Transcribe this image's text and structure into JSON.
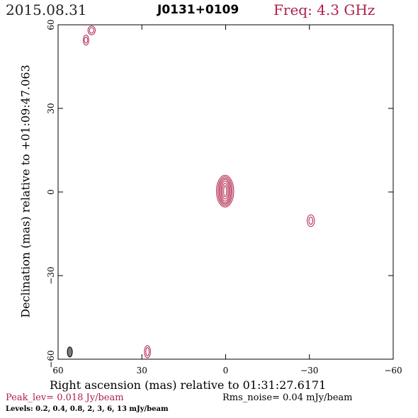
{
  "header": {
    "date": "2015.08.31",
    "source": "J0131+0109",
    "freq": "Freq: 4.3 GHz"
  },
  "footer": {
    "peak": "Peak_lev=  0.018 Jy/beam",
    "rms": "Rms_noise= 0.04 mJy/beam",
    "levels": "Levels: 0.2, 0.4, 0.8,   2,   3,   6,  13 mJy/beam"
  },
  "chart_data": {
    "type": "contour",
    "xlabel": "Right ascension (mas) relative to 01:31:27.6171",
    "ylabel": "Declination (mas) relative to +01:09:47.063",
    "xlim": [
      60,
      -60
    ],
    "ylim": [
      -60,
      60
    ],
    "xticks": [
      60,
      30,
      0,
      -30,
      -60
    ],
    "yticks": [
      60,
      30,
      0,
      -30,
      -60
    ],
    "xtick_labels": [
      "60",
      "30",
      "0",
      "−30",
      "−60"
    ],
    "ytick_labels": [
      "60",
      "30",
      "0",
      "−30",
      "−60"
    ],
    "contour_color": "#b0204a",
    "beam_color": "#7a7a7a",
    "components": [
      {
        "x": 0.2,
        "y": 0.3,
        "rx": [
          0.5,
          1.0,
          1.4,
          1.8,
          2.2,
          2.6,
          3.1
        ],
        "ry": [
          2.0,
          2.8,
          3.6,
          4.2,
          4.7,
          5.2,
          5.7
        ]
      },
      {
        "x": -30.5,
        "y": -10.3,
        "rx": [
          0.7,
          1.3
        ],
        "ry": [
          1.3,
          2.1
        ]
      },
      {
        "x": 28.0,
        "y": -57.3,
        "rx": [
          0.6,
          1.1
        ],
        "ry": [
          1.5,
          2.2
        ]
      },
      {
        "x": 50.0,
        "y": 54.5,
        "rx": [
          0.6,
          1.0
        ],
        "ry": [
          1.1,
          1.8
        ]
      },
      {
        "x": 48.0,
        "y": 58.0,
        "rx": [
          0.8,
          1.3
        ],
        "ry": [
          1.0,
          1.6
        ]
      }
    ],
    "beam": {
      "x": 55.8,
      "y": -57.4,
      "rx": 0.9,
      "ry": 1.8
    }
  }
}
